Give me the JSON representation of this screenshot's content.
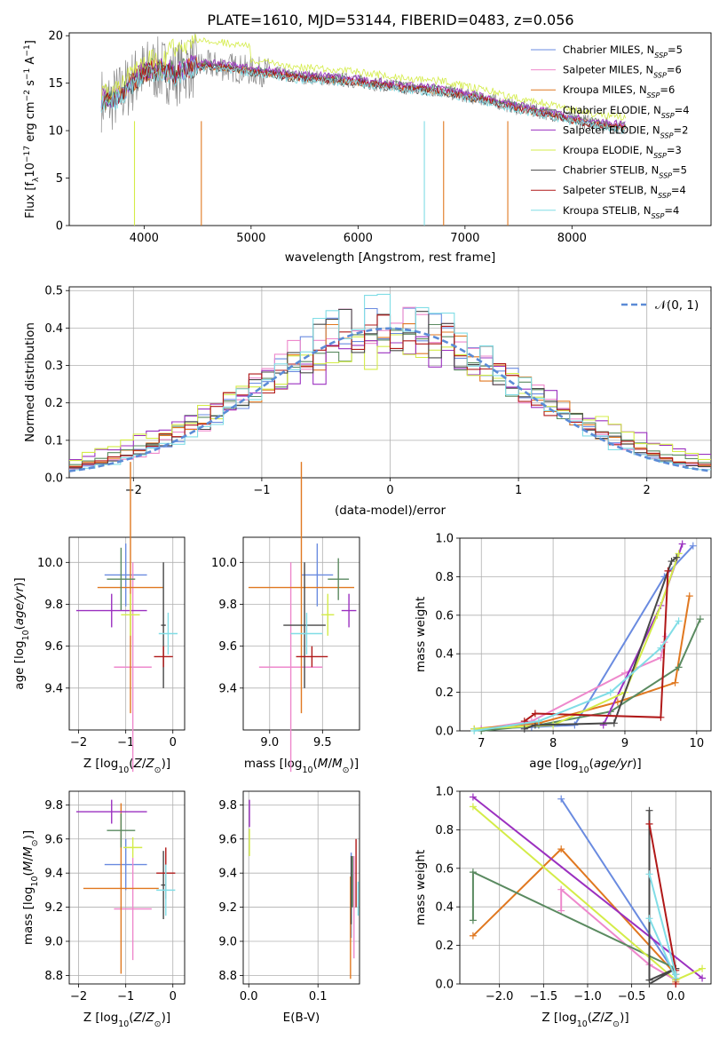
{
  "title": "PLATE=1610, MJD=53144, FIBERID=0483, z=0.056",
  "palette": [
    "#6a8be0",
    "#ee88cc",
    "#e07820",
    "#5a8a60",
    "#9b30c0",
    "#d4ec48",
    "#484848",
    "#b01818",
    "#80dde6"
  ],
  "chart_data": [
    {
      "id": "spectrum",
      "type": "line",
      "title": "PLATE=1610, MJD=53144, FIBERID=0483, z=0.056",
      "xlabel": "wavelength [Angstrom, rest frame]",
      "ylabel": "Flux [f_λ10^-17 erg cm^-2 s^-1 A^-1]",
      "xlim": [
        3300,
        9300
      ],
      "ylim": [
        0,
        20.3
      ],
      "xticks": [
        4000,
        5000,
        6000,
        7000,
        8000
      ],
      "yticks": [
        0,
        5,
        10,
        15,
        20
      ],
      "grid": false,
      "legend_position": "top-right",
      "data_color": "#888888",
      "models_x": [
        3600,
        3650,
        3700,
        3800,
        3900,
        4000,
        4100,
        4200,
        4300,
        4400,
        4500,
        4600,
        4700,
        4800,
        4900,
        5000,
        5200,
        5400,
        5600,
        5800,
        6000,
        6200,
        6400,
        6600,
        6800,
        7000,
        7200,
        7400,
        7600,
        7800,
        8000,
        8200,
        8400,
        8500
      ],
      "models_y": [
        13.3,
        13.0,
        13.2,
        14.0,
        15.3,
        16.2,
        16.5,
        16.3,
        16.0,
        16.6,
        16.8,
        16.9,
        16.8,
        16.7,
        16.5,
        16.3,
        16.1,
        15.7,
        15.6,
        15.4,
        15.2,
        14.9,
        14.6,
        14.4,
        14.2,
        13.7,
        13.3,
        12.7,
        12.2,
        11.8,
        11.2,
        10.8,
        10.5,
        10.3
      ],
      "series": [
        {
          "name": "Chabrier MILES, N_SSP=5",
          "offset": 0.0
        },
        {
          "name": "Salpeter MILES, N_SSP=6",
          "offset": 0.1
        },
        {
          "name": "Kroupa MILES, N_SSP=6",
          "offset": -0.1
        },
        {
          "name": "Chabrier ELODIE, N_SSP=4",
          "offset": 0.15
        },
        {
          "name": "Salpeter ELODIE, N_SSP=2",
          "offset": 0.25
        },
        {
          "name": "Kroupa ELODIE, N_SSP=3",
          "offset": 1.0
        },
        {
          "name": "Chabrier STELIB, N_SSP=5",
          "offset": -0.2
        },
        {
          "name": "Salpeter STELIB, N_SSP=4",
          "offset": -0.1
        },
        {
          "name": "Kroupa STELIB, N_SSP=4",
          "offset": -0.3
        }
      ]
    },
    {
      "id": "residuals",
      "type": "line",
      "xlabel": "(data-model)/error",
      "ylabel": "Normed distribution",
      "xlim": [
        -2.5,
        2.5
      ],
      "ylim": [
        0,
        0.51
      ],
      "xticks": [
        -2,
        -1,
        0,
        1,
        2
      ],
      "yticks": [
        0.0,
        0.1,
        0.2,
        0.3,
        0.4,
        0.5
      ],
      "grid": true,
      "legend_position": "top-right",
      "legend": "𝒩(0, 1)",
      "reference_curve": "normal(0,1)",
      "bins": [
        -2.5,
        2.5,
        50
      ]
    },
    {
      "id": "z_age",
      "type": "scatter",
      "xlabel": "Z [log10(Z/Z_sun)]",
      "ylabel": "age [log10(age/yr)]",
      "xlim": [
        -2.2,
        0.25
      ],
      "ylim": [
        9.2,
        10.12
      ],
      "xticks": [
        -2,
        -1,
        0
      ],
      "yticks": [
        9.4,
        9.6,
        9.8,
        10.0
      ],
      "grid": true,
      "points": [
        {
          "x": -1.0,
          "xerr": 0.45,
          "y": 9.94,
          "yerr": 0.15,
          "c": 0
        },
        {
          "x": -0.85,
          "xerr": 0.4,
          "y": 9.5,
          "yerr": 0.5,
          "c": 1
        },
        {
          "x": -0.9,
          "xerr": 0.7,
          "y": 9.88,
          "yerr": 0.6,
          "c": 2
        },
        {
          "x": -1.1,
          "xerr": 0.3,
          "y": 9.92,
          "yerr": 0.15,
          "c": 3
        },
        {
          "x": -1.3,
          "xerr": 0.75,
          "y": 9.77,
          "yerr": 0.08,
          "c": 4
        },
        {
          "x": -0.9,
          "xerr": 0.2,
          "y": 9.75,
          "yerr": 0.1,
          "c": 5
        },
        {
          "x": -0.2,
          "xerr": 0.05,
          "y": 9.7,
          "yerr": 0.3,
          "c": 6
        },
        {
          "x": -0.2,
          "xerr": 0.2,
          "y": 9.55,
          "yerr": 0.05,
          "c": 7
        },
        {
          "x": -0.1,
          "xerr": 0.2,
          "y": 9.66,
          "yerr": 0.1,
          "c": 8
        }
      ]
    },
    {
      "id": "mass_age",
      "type": "scatter",
      "xlabel": "mass [log10(M/M_sun)]",
      "ylabel": "",
      "xlim": [
        8.75,
        9.85
      ],
      "ylim": [
        9.2,
        10.12
      ],
      "xticks": [
        9.0,
        9.5
      ],
      "yticks": [
        9.4,
        9.6,
        9.8,
        10.0
      ],
      "grid": true,
      "points": [
        {
          "x": 9.45,
          "xerr": 0.15,
          "y": 9.94,
          "yerr": 0.15,
          "c": 0
        },
        {
          "x": 9.2,
          "xerr": 0.3,
          "y": 9.5,
          "yerr": 0.5,
          "c": 1
        },
        {
          "x": 9.3,
          "xerr": 0.5,
          "y": 9.88,
          "yerr": 0.6,
          "c": 2
        },
        {
          "x": 9.65,
          "xerr": 0.1,
          "y": 9.92,
          "yerr": 0.1,
          "c": 3
        },
        {
          "x": 9.75,
          "xerr": 0.07,
          "y": 9.77,
          "yerr": 0.08,
          "c": 4
        },
        {
          "x": 9.55,
          "xerr": 0.06,
          "y": 9.75,
          "yerr": 0.1,
          "c": 5
        },
        {
          "x": 9.33,
          "xerr": 0.2,
          "y": 9.7,
          "yerr": 0.3,
          "c": 6
        },
        {
          "x": 9.4,
          "xerr": 0.15,
          "y": 9.55,
          "yerr": 0.05,
          "c": 7
        },
        {
          "x": 9.35,
          "xerr": 0.15,
          "y": 9.66,
          "yerr": 0.1,
          "c": 8
        }
      ]
    },
    {
      "id": "age_cumweight",
      "type": "line",
      "xlabel": "age [log10(age/yr)]",
      "ylabel": "mass weight",
      "xlim": [
        6.7,
        10.2
      ],
      "ylim": [
        0,
        1.0
      ],
      "xticks": [
        7,
        8,
        9,
        10
      ],
      "yticks": [
        0.0,
        0.2,
        0.4,
        0.6,
        0.8,
        1.0
      ],
      "grid": true,
      "series": [
        {
          "c": 0,
          "x": [
            7.0,
            7.7,
            8.3,
            9.55,
            9.95
          ],
          "y": [
            0.01,
            0.02,
            0.03,
            0.8,
            0.96
          ]
        },
        {
          "c": 1,
          "x": [
            7.0,
            7.7,
            9.0,
            9.5,
            9.55,
            9.57
          ],
          "y": [
            0.01,
            0.05,
            0.3,
            0.38,
            0.46,
            0.49
          ]
        },
        {
          "c": 2,
          "x": [
            6.9,
            7.8,
            8.9,
            9.7,
            9.9
          ],
          "y": [
            0.01,
            0.04,
            0.15,
            0.25,
            0.7
          ]
        },
        {
          "c": 3,
          "x": [
            7.0,
            7.8,
            8.8,
            9.75,
            10.05
          ],
          "y": [
            0.0,
            0.03,
            0.1,
            0.33,
            0.58
          ]
        },
        {
          "c": 4,
          "x": [
            8.7,
            9.5,
            9.8
          ],
          "y": [
            0.03,
            0.65,
            0.97
          ]
        },
        {
          "c": 5,
          "x": [
            6.9,
            8.0,
            9.0,
            9.45,
            9.75
          ],
          "y": [
            0.01,
            0.03,
            0.2,
            0.6,
            0.92
          ]
        },
        {
          "c": 6,
          "x": [
            7.6,
            7.75,
            8.85,
            9.65,
            9.72
          ],
          "y": [
            0.01,
            0.03,
            0.04,
            0.88,
            0.9
          ]
        },
        {
          "c": 7,
          "x": [
            7.6,
            7.75,
            9.5,
            9.6
          ],
          "y": [
            0.05,
            0.09,
            0.07,
            0.83
          ]
        },
        {
          "c": 8,
          "x": [
            6.9,
            7.8,
            8.8,
            9.5,
            9.75
          ],
          "y": [
            0.0,
            0.05,
            0.2,
            0.43,
            0.57
          ]
        }
      ]
    },
    {
      "id": "z_mass",
      "type": "scatter",
      "xlabel": "Z [log10(Z/Z_sun)]",
      "ylabel": "mass [log10(M/M_sun)]",
      "xlim": [
        -2.2,
        0.25
      ],
      "ylim": [
        8.75,
        9.88
      ],
      "xticks": [
        -2,
        -1,
        0
      ],
      "yticks": [
        8.8,
        9.0,
        9.2,
        9.4,
        9.6,
        9.8
      ],
      "grid": true,
      "points": [
        {
          "x": -1.0,
          "xerr": 0.45,
          "y": 9.45,
          "yerr": 0.15,
          "c": 0
        },
        {
          "x": -0.85,
          "xerr": 0.4,
          "y": 9.19,
          "yerr": 0.3,
          "c": 1
        },
        {
          "x": -1.1,
          "xerr": 0.8,
          "y": 9.31,
          "yerr": 0.5,
          "c": 2
        },
        {
          "x": -1.1,
          "xerr": 0.3,
          "y": 9.65,
          "yerr": 0.1,
          "c": 3
        },
        {
          "x": -1.3,
          "xerr": 0.75,
          "y": 9.76,
          "yerr": 0.07,
          "c": 4
        },
        {
          "x": -0.85,
          "xerr": 0.2,
          "y": 9.55,
          "yerr": 0.06,
          "c": 5
        },
        {
          "x": -0.2,
          "xerr": 0.05,
          "y": 9.33,
          "yerr": 0.2,
          "c": 6
        },
        {
          "x": -0.15,
          "xerr": 0.2,
          "y": 9.4,
          "yerr": 0.15,
          "c": 7
        },
        {
          "x": -0.15,
          "xerr": 0.2,
          "y": 9.3,
          "yerr": 0.15,
          "c": 8
        }
      ]
    },
    {
      "id": "ebv_mass",
      "type": "scatter",
      "xlabel": "E(B-V)",
      "ylabel": "",
      "xlim": [
        -0.008,
        0.16
      ],
      "ylim": [
        8.75,
        9.88
      ],
      "xticks": [
        0.0,
        0.1
      ],
      "yticks": [
        8.8,
        9.0,
        9.2,
        9.4,
        9.6,
        9.8
      ],
      "grid": true,
      "points": [
        {
          "x": 0.148,
          "xerr": 0,
          "y": 9.27,
          "yerr": 0.25,
          "c": 0
        },
        {
          "x": 0.152,
          "xerr": 0,
          "y": 9.2,
          "yerr": 0.3,
          "c": 1
        },
        {
          "x": 0.147,
          "xerr": 0,
          "y": 9.08,
          "yerr": 0.3,
          "c": 2
        },
        {
          "x": 0.15,
          "xerr": 0,
          "y": 9.35,
          "yerr": 0.15,
          "c": 3
        },
        {
          "x": 0.001,
          "xerr": 0,
          "y": 9.75,
          "yerr": 0.08,
          "c": 4
        },
        {
          "x": 0.001,
          "xerr": 0,
          "y": 9.58,
          "yerr": 0.08,
          "c": 5
        },
        {
          "x": 0.148,
          "xerr": 0,
          "y": 9.3,
          "yerr": 0.2,
          "c": 6
        },
        {
          "x": 0.155,
          "xerr": 0,
          "y": 9.4,
          "yerr": 0.2,
          "c": 7
        },
        {
          "x": 0.158,
          "xerr": 0,
          "y": 9.25,
          "yerr": 0.1,
          "c": 8
        }
      ]
    },
    {
      "id": "z_cumweight",
      "type": "line",
      "xlabel": "Z [log10(Z/Z_sun)]",
      "ylabel": "mass weight",
      "xlim": [
        -2.45,
        0.4
      ],
      "ylim": [
        0,
        1.0
      ],
      "xticks": [
        -2.0,
        -1.5,
        -1.0,
        -0.5,
        0.0
      ],
      "yticks": [
        0.0,
        0.2,
        0.4,
        0.6,
        0.8,
        1.0
      ],
      "grid": true,
      "series": [
        {
          "c": 0,
          "x": [
            -1.3,
            0.0,
            0.0
          ],
          "y": [
            0.96,
            0.05,
            0.02
          ]
        },
        {
          "c": 1,
          "x": [
            -1.3,
            -1.3,
            -0.3,
            0.0
          ],
          "y": [
            0.38,
            0.49,
            0.1,
            0.02
          ]
        },
        {
          "c": 2,
          "x": [
            -2.3,
            -1.3,
            0.0,
            0.0
          ],
          "y": [
            0.25,
            0.7,
            0.05,
            0.01
          ]
        },
        {
          "c": 3,
          "x": [
            -2.3,
            -2.3,
            0.0
          ],
          "y": [
            0.33,
            0.58,
            0.08
          ]
        },
        {
          "c": 4,
          "x": [
            -2.3,
            0.3
          ],
          "y": [
            0.97,
            0.03
          ]
        },
        {
          "c": 5,
          "x": [
            -2.3,
            0.0,
            0.3
          ],
          "y": [
            0.92,
            0.02,
            0.08
          ]
        },
        {
          "c": 6,
          "x": [
            -0.3,
            -0.3,
            0.0,
            -0.3
          ],
          "y": [
            0.9,
            0.02,
            0.08,
            0.0
          ]
        },
        {
          "c": 7,
          "x": [
            -0.3,
            0.0,
            0.0
          ],
          "y": [
            0.83,
            0.07,
            0.0
          ]
        },
        {
          "c": 8,
          "x": [
            -0.3,
            0.0,
            0.0,
            -0.3
          ],
          "y": [
            0.57,
            0.05,
            0.03,
            0.34
          ]
        }
      ]
    }
  ]
}
